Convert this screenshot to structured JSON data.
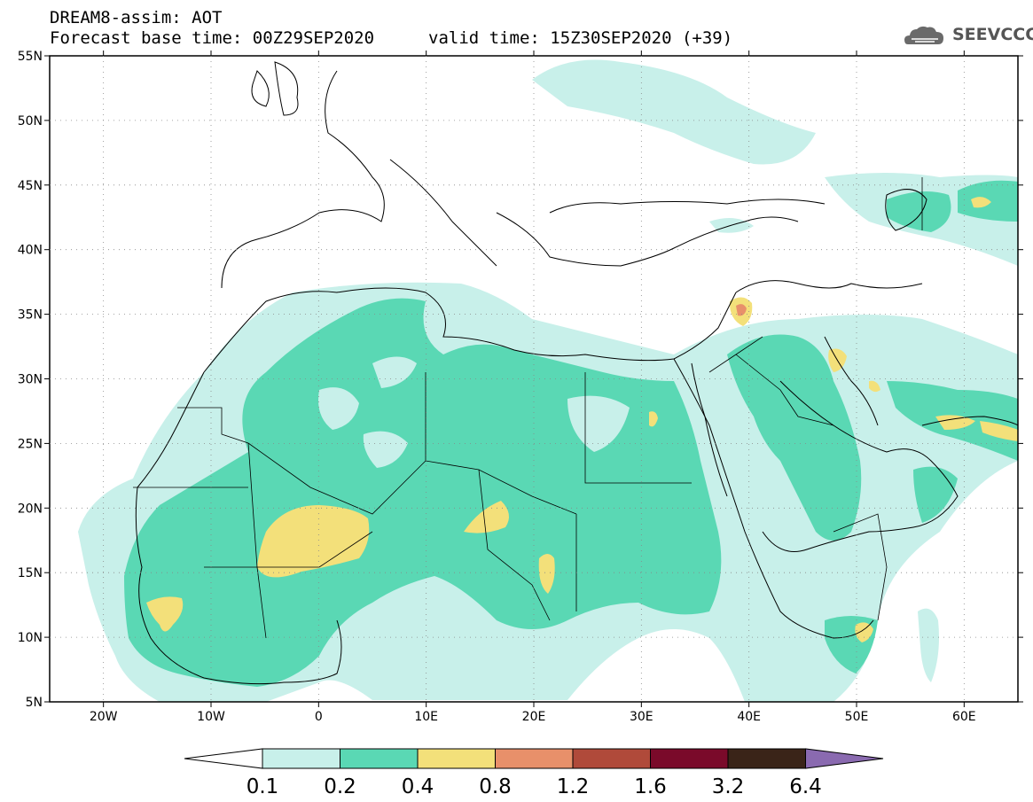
{
  "header": {
    "title": "DREAM8-assim: AOT",
    "base_time": "Forecast base time: 00Z29SEP2020",
    "valid_time": "valid time: 15Z30SEP2020 (+39)"
  },
  "logo": {
    "text": "SEEVCCC",
    "icon": "cloud-icon"
  },
  "map": {
    "lon_range": [
      -25,
      65
    ],
    "lat_range": [
      5,
      55
    ],
    "lon_ticks": [
      "20W",
      "10W",
      "0",
      "10E",
      "20E",
      "30E",
      "40E",
      "50E",
      "60E"
    ],
    "lat_ticks": [
      "55N",
      "50N",
      "45N",
      "40N",
      "35N",
      "30N",
      "25N",
      "20N",
      "15N",
      "10N",
      "5N"
    ]
  },
  "colorbar": {
    "labels": [
      "0.1",
      "0.2",
      "0.4",
      "0.8",
      "1.2",
      "1.6",
      "3.2",
      "6.4"
    ],
    "colors": [
      "#c8f0ea",
      "#5ad8b4",
      "#f3e07a",
      "#e8906a",
      "#b04a3a",
      "#7a0a2a",
      "#3a2418",
      "#8a6ab0"
    ]
  }
}
